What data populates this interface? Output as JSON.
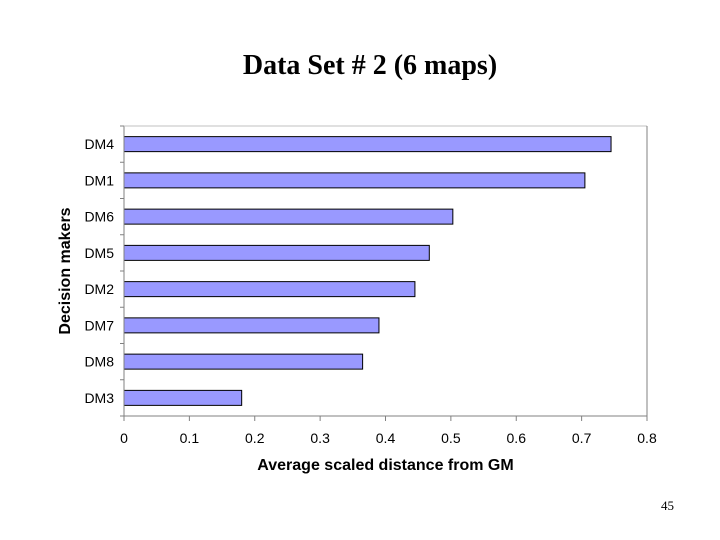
{
  "slide": {
    "title": "Data Set # 2 (6 maps)",
    "page_number": "45"
  },
  "chart_data": {
    "type": "bar",
    "orientation": "horizontal",
    "categories": [
      "DM4",
      "DM1",
      "DM6",
      "DM5",
      "DM2",
      "DM7",
      "DM8",
      "DM3"
    ],
    "values": [
      0.745,
      0.705,
      0.503,
      0.467,
      0.445,
      0.39,
      0.365,
      0.18
    ],
    "xlabel": "Average scaled distance from GM",
    "ylabel": "Decision makers",
    "xlim": [
      0,
      0.8
    ],
    "xticks": [
      "0",
      "0.1",
      "0.2",
      "0.3",
      "0.4",
      "0.5",
      "0.6",
      "0.7",
      "0.8"
    ],
    "grid": false,
    "legend": "none",
    "bar_color": "#9999ff",
    "bar_edge_color": "#000000"
  }
}
